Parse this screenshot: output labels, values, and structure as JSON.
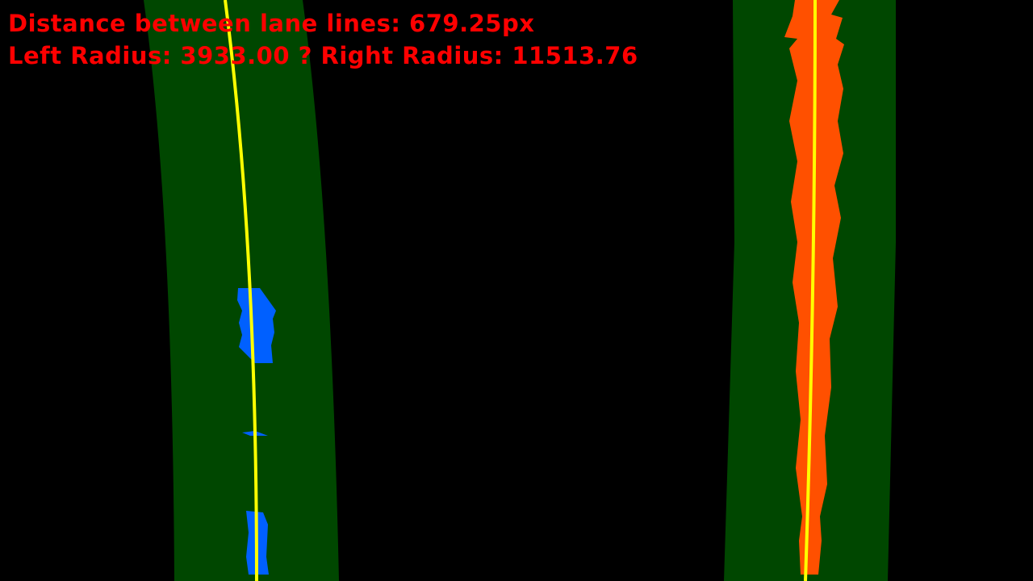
{
  "overlay": {
    "distance_text": "Distance between lane lines: 679.25px",
    "radius_text": "Left Radius: 3933.00 ? Right Radius: 11513.76"
  },
  "colors": {
    "background": "#000000",
    "lane_window": "#004700",
    "left_pixels": "#0060ff",
    "right_pixels": "#ff5000",
    "fit_line": "#ffff00",
    "text": "#ff0000"
  }
}
